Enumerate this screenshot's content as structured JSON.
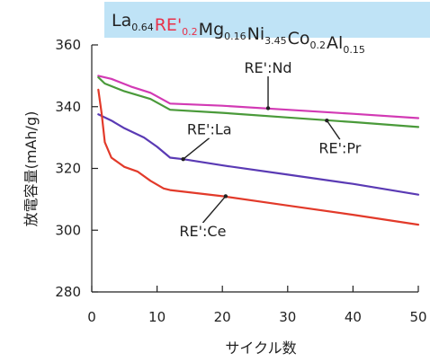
{
  "chart_data": {
    "type": "line",
    "title_segments": [
      {
        "main": "La",
        "sub": "0.64",
        "color": "#222222"
      },
      {
        "main": "RE'",
        "sub": "0.2",
        "color": "#e8324a"
      },
      {
        "main": "Mg",
        "sub": "0.16",
        "color": "#222222"
      },
      {
        "main": "Ni",
        "sub": "3.45",
        "color": "#222222"
      },
      {
        "main": "Co",
        "sub": "0.2",
        "color": "#222222"
      },
      {
        "main": "Al",
        "sub": "0.15",
        "color": "#222222"
      }
    ],
    "title_background": "#bfe3f6",
    "xlabel": "サイクル数",
    "ylabel": "放電容量(mAh/g)",
    "xlim": [
      0,
      50
    ],
    "ylim": [
      280,
      360
    ],
    "x_ticks": [
      0,
      10,
      20,
      30,
      40,
      50
    ],
    "y_ticks": [
      280,
      300,
      320,
      340,
      360
    ],
    "grid": false,
    "series": [
      {
        "name": "RE':Nd",
        "color": "#d23ab4",
        "points": [
          [
            1,
            350
          ],
          [
            3,
            349
          ],
          [
            6,
            346.5
          ],
          [
            9,
            344.5
          ],
          [
            12,
            341
          ],
          [
            20,
            340.3
          ],
          [
            30,
            339
          ],
          [
            40,
            337.7
          ],
          [
            50,
            336.3
          ]
        ]
      },
      {
        "name": "RE':Pr",
        "color": "#4a9a3a",
        "points": [
          [
            1,
            349.5
          ],
          [
            2,
            347.5
          ],
          [
            5,
            345
          ],
          [
            9,
            342.5
          ],
          [
            12,
            339
          ],
          [
            20,
            338
          ],
          [
            30,
            336.5
          ],
          [
            40,
            335
          ],
          [
            50,
            333.4
          ]
        ]
      },
      {
        "name": "RE':La",
        "color": "#5a3ab4",
        "points": [
          [
            1,
            337.5
          ],
          [
            3,
            335.5
          ],
          [
            5,
            333
          ],
          [
            8,
            330
          ],
          [
            10,
            327
          ],
          [
            12,
            323.5
          ],
          [
            14,
            323
          ],
          [
            20,
            321
          ],
          [
            30,
            318
          ],
          [
            40,
            315
          ],
          [
            50,
            311.5
          ]
        ]
      },
      {
        "name": "RE':Ce",
        "color": "#e23a2a",
        "points": [
          [
            1,
            345.5
          ],
          [
            1.5,
            338
          ],
          [
            2,
            328.5
          ],
          [
            3,
            323.5
          ],
          [
            4,
            322
          ],
          [
            5,
            320.5
          ],
          [
            7,
            319
          ],
          [
            9,
            316
          ],
          [
            11,
            313.5
          ],
          [
            12,
            313
          ],
          [
            20,
            311
          ],
          [
            30,
            308
          ],
          [
            40,
            305
          ],
          [
            50,
            301.8
          ]
        ]
      }
    ],
    "annotations": [
      {
        "text": "RE':Nd",
        "label_at": [
          27,
          351
        ],
        "arrow_to": [
          27,
          339.5
        ]
      },
      {
        "text": "RE':La",
        "label_at": [
          18,
          331
        ],
        "arrow_to": [
          14,
          323
        ]
      },
      {
        "text": "RE':Pr",
        "label_at": [
          38,
          325
        ],
        "arrow_to": [
          36,
          335.5
        ]
      },
      {
        "text": "RE':Ce",
        "label_at": [
          17,
          298
        ],
        "arrow_to": [
          20.5,
          311
        ]
      }
    ]
  }
}
